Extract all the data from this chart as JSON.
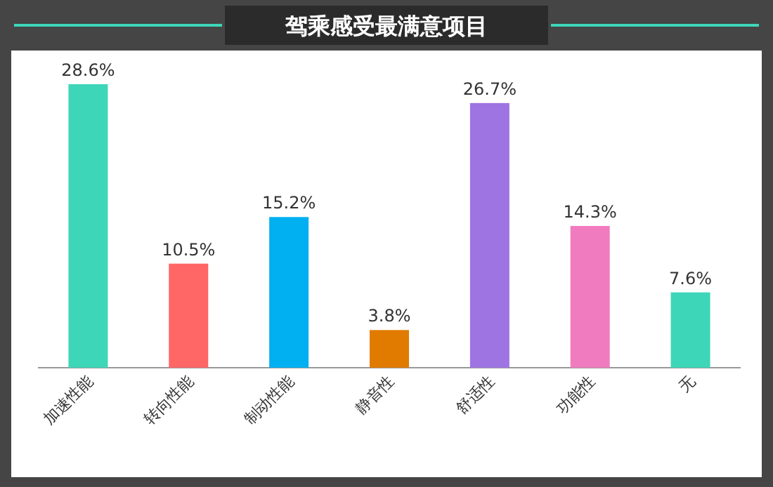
{
  "chart_data": {
    "type": "bar",
    "title": "驾乘感受最满意项目",
    "categories": [
      "加速性能",
      "转向性能",
      "制动性能",
      "静音性",
      "舒适性",
      "功能性",
      "无"
    ],
    "values": [
      28.6,
      10.5,
      15.2,
      3.8,
      26.7,
      14.3,
      7.6
    ],
    "colors": [
      "#3dd6b8",
      "#ff6666",
      "#00b0f0",
      "#e07b00",
      "#9e74e3",
      "#f07cbf",
      "#3dd6b8"
    ],
    "value_labels": [
      "28.6%",
      "10.5%",
      "15.2%",
      "3.8%",
      "26.7%",
      "14.3%",
      "7.6%"
    ]
  }
}
